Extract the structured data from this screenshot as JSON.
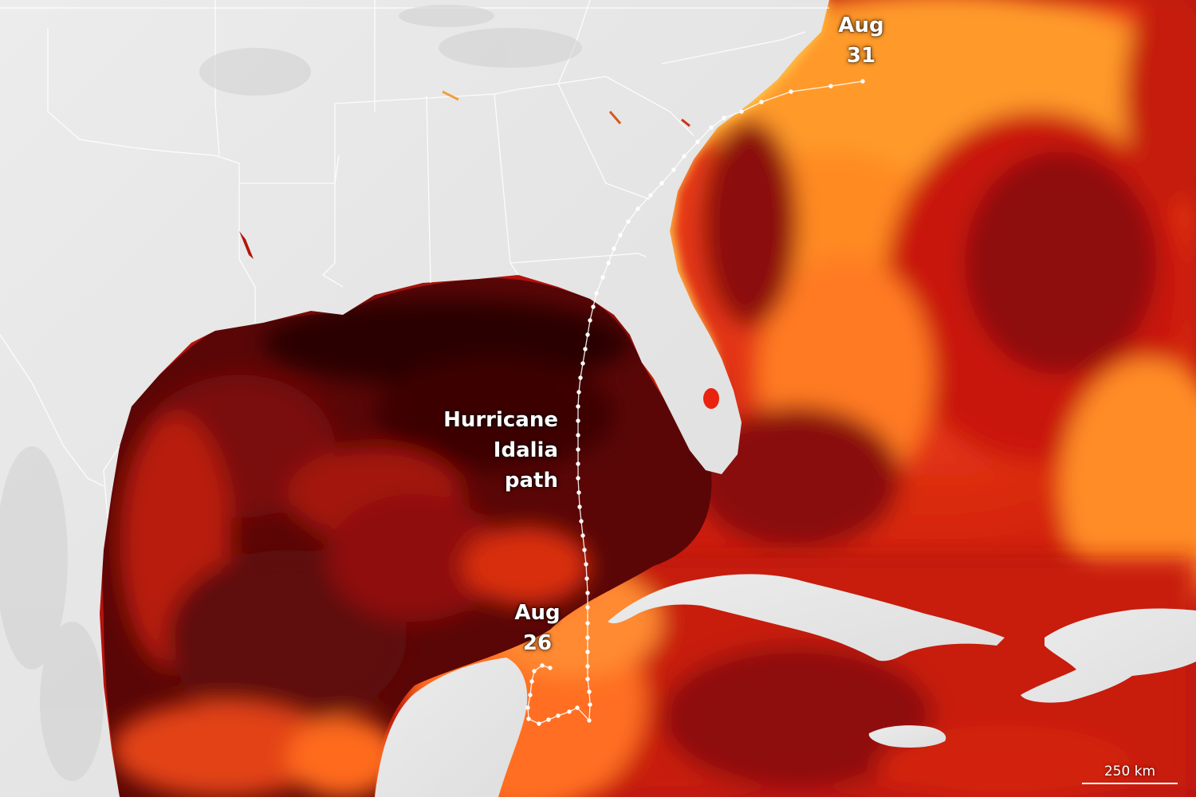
{
  "map": {
    "path_label": [
      "Hurricane",
      "Idalia",
      "path"
    ],
    "start_label": [
      "Aug",
      "26"
    ],
    "end_label": [
      "Aug",
      "31"
    ],
    "scale_label": "250 km"
  },
  "colors": {
    "land": "#e4e4e4",
    "border": "#ffffff",
    "sea_hot": "#2a0405",
    "sea_warm": "#a8100c",
    "sea_cool": "#f26a1c",
    "sea_coolest": "#ffc04a",
    "track": "#ffffff"
  }
}
